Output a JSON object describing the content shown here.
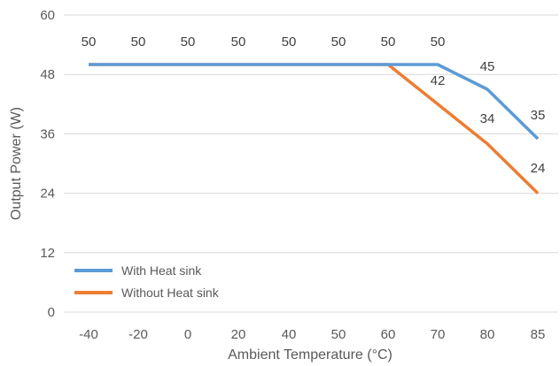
{
  "chart_data": {
    "type": "line",
    "xlabel": "Ambient Temperature (°C)",
    "ylabel": "Output Power (W)",
    "categories": [
      "-40",
      "-20",
      "0",
      "20",
      "40",
      "50",
      "60",
      "70",
      "80",
      "85"
    ],
    "ylim": [
      0,
      60
    ],
    "yticks": [
      "0",
      "12",
      "24",
      "36",
      "48",
      "60"
    ],
    "grid": true,
    "legend_position": "bottom-left",
    "series": [
      {
        "name": "With Heat sink",
        "color": "#5B9BD5",
        "values": [
          50,
          50,
          50,
          50,
          50,
          50,
          50,
          50,
          45,
          35
        ]
      },
      {
        "name": "Without Heat sink",
        "color": "#ED7D31",
        "values": [
          50,
          50,
          50,
          50,
          50,
          50,
          50,
          42,
          34,
          24
        ]
      }
    ],
    "data_labels": [
      {
        "category": "-40",
        "text": "50"
      },
      {
        "category": "-20",
        "text": "50"
      },
      {
        "category": "0",
        "text": "50"
      },
      {
        "category": "20",
        "text": "50"
      },
      {
        "category": "40",
        "text": "50"
      },
      {
        "category": "50",
        "text": "50"
      },
      {
        "category": "60",
        "text": "50"
      },
      {
        "category": "70",
        "text": "50"
      },
      {
        "category": "70",
        "text": "42"
      },
      {
        "category": "80",
        "text": "45"
      },
      {
        "category": "80",
        "text": "34"
      },
      {
        "category": "85",
        "text": "35"
      },
      {
        "category": "85",
        "text": "24"
      }
    ]
  }
}
